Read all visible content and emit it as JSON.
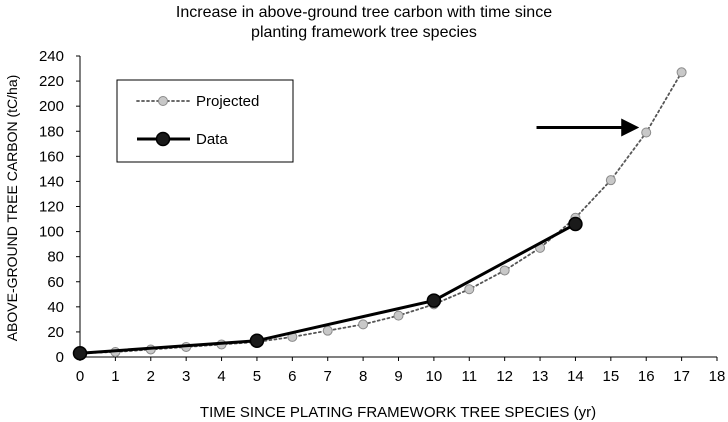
{
  "chart_data": {
    "type": "line",
    "title": "Increase in above-ground tree carbon with time since",
    "subtitle": "planting framework tree species",
    "xlabel": "TIME SINCE PLATING FRAMEWORK TREE SPECIES (yr)",
    "ylabel": "ABOVE-GROUND TREE CARBON (tC/ha)",
    "xlim": [
      0,
      18
    ],
    "ylim": [
      0,
      240
    ],
    "x_ticks": [
      0,
      1,
      2,
      3,
      4,
      5,
      6,
      7,
      8,
      9,
      10,
      11,
      12,
      13,
      14,
      15,
      16,
      17,
      18
    ],
    "y_ticks": [
      0,
      20,
      40,
      60,
      80,
      100,
      120,
      140,
      160,
      180,
      200,
      220,
      240
    ],
    "grid": false,
    "legend_position": "top-left",
    "series": [
      {
        "name": "Projected",
        "style": "dotted line with grey circle markers",
        "color": "#555555",
        "marker_color": "#c8c8c8",
        "x": [
          0,
          1,
          2,
          3,
          4,
          5,
          6,
          7,
          8,
          9,
          10,
          11,
          12,
          13,
          14,
          15,
          16,
          17
        ],
        "y": [
          3,
          4,
          6,
          8,
          10,
          12,
          16,
          21,
          26,
          33,
          42,
          54,
          69,
          87,
          111,
          141,
          179,
          227
        ]
      },
      {
        "name": "Data",
        "style": "solid line with black circle markers",
        "color": "#000000",
        "marker_color": "#000000",
        "x": [
          0,
          5,
          10,
          14
        ],
        "y": [
          3,
          13,
          45,
          106
        ]
      }
    ],
    "annotations": [
      {
        "type": "arrow",
        "direction": "right",
        "points_to_x": 16,
        "at_y": 183,
        "from_x": 12.9
      }
    ]
  }
}
